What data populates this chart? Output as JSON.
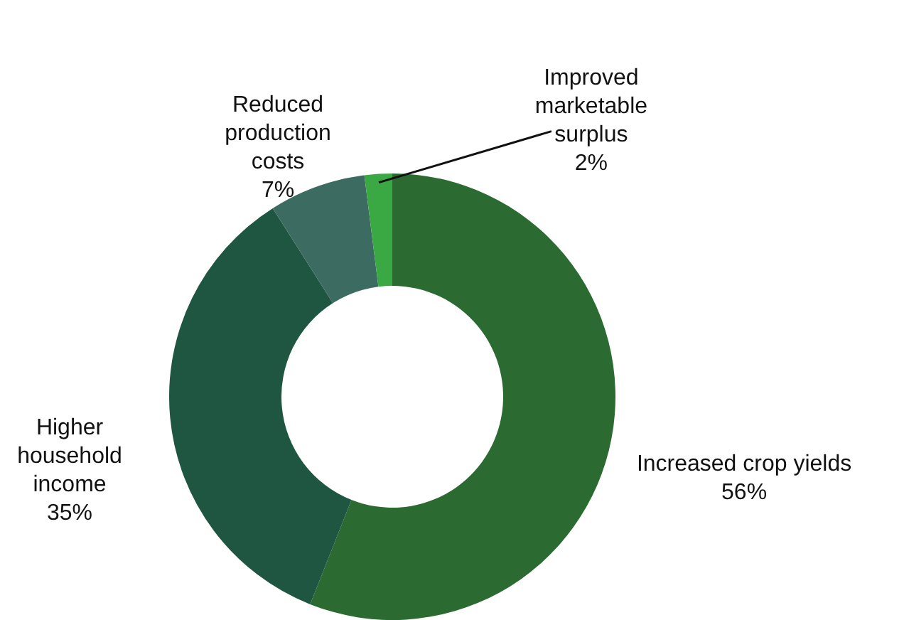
{
  "chart_data": {
    "type": "donut",
    "categories": [
      "Increased crop yields",
      "Higher household income",
      "Reduced production costs",
      "Improved marketable surplus"
    ],
    "values": [
      56,
      35,
      7,
      2
    ],
    "colors": [
      "#2b6a30",
      "#1f5641",
      "#3b6b61",
      "#3aa843"
    ],
    "value_labels": [
      "56%",
      "35%",
      "7%",
      "2%"
    ]
  }
}
